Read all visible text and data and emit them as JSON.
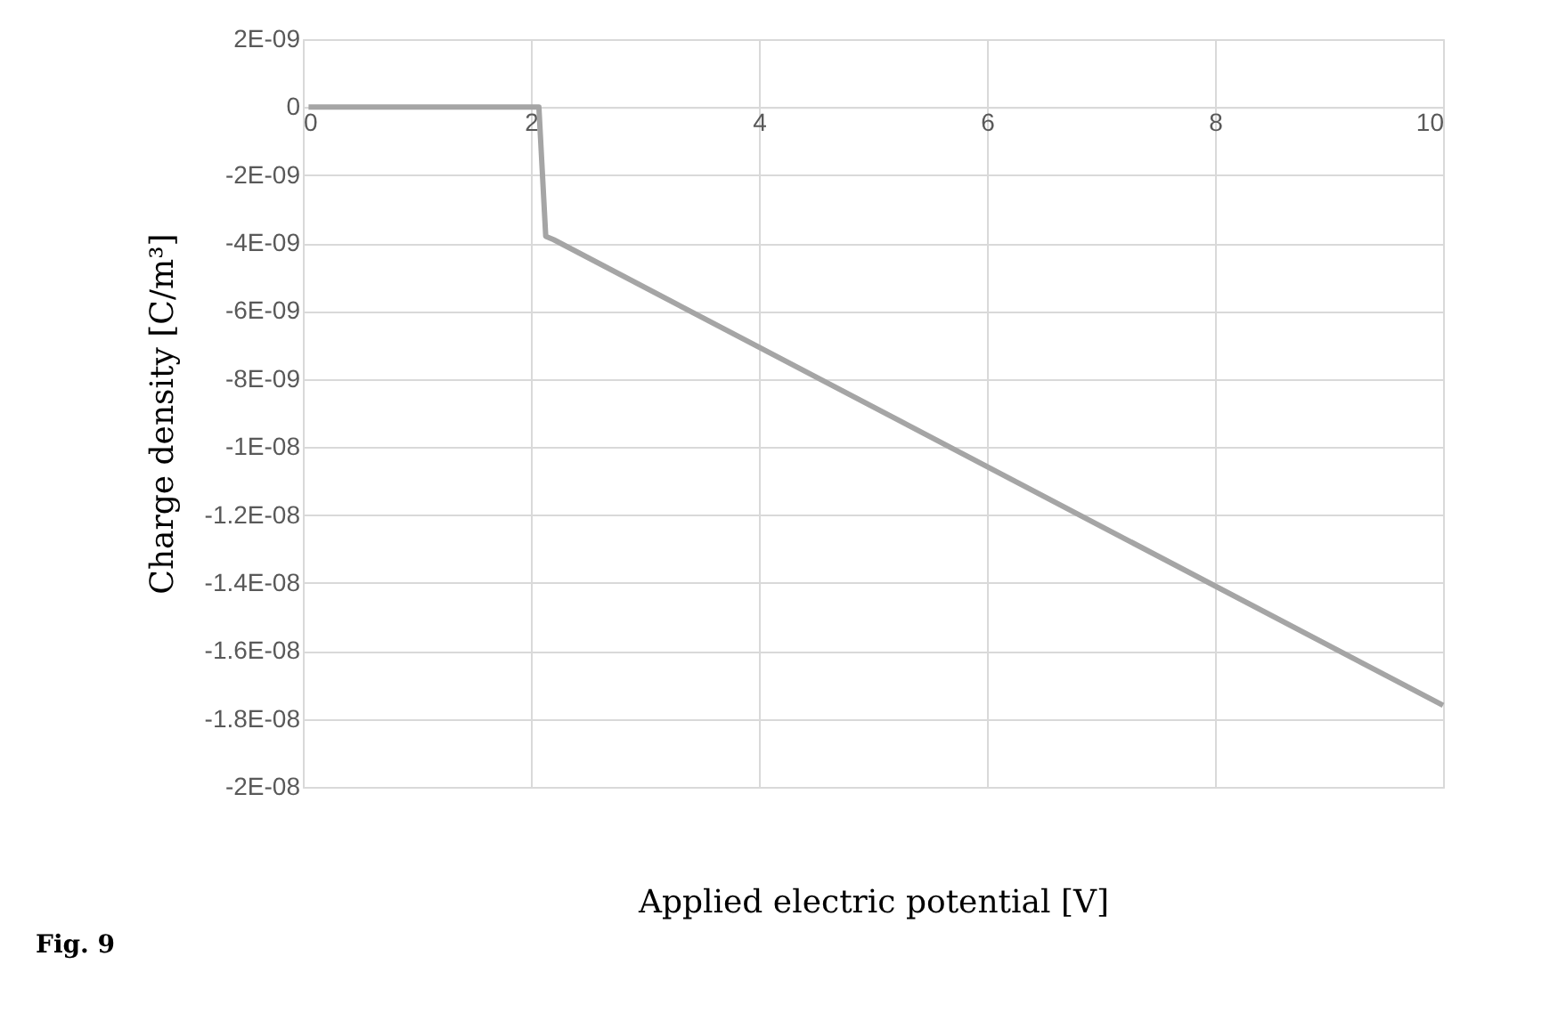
{
  "chart_data": {
    "type": "line",
    "xlabel": "Applied electric potential [V]",
    "ylabel": "Charge density   [C/m³]",
    "annotations": [
      "Fig. 9"
    ],
    "series": [
      {
        "color": "#a5a5a5",
        "x": [
          0.05,
          1.0,
          1.9,
          2.07,
          2.13,
          2.2,
          10
        ],
        "values": [
          0,
          0,
          0,
          0,
          -3.8e-09,
          -3.9e-09,
          -1.76e-08
        ]
      }
    ],
    "xlim": [
      0,
      10
    ],
    "xticks": [
      0,
      2,
      4,
      6,
      8,
      10
    ],
    "ylim": [
      -2e-08,
      2e-09
    ],
    "yticks": [
      {
        "value": 2e-09,
        "label": "2E-09"
      },
      {
        "value": 0,
        "label": "0"
      },
      {
        "value": -2e-09,
        "label": "-2E-09"
      },
      {
        "value": -4e-09,
        "label": "-4E-09"
      },
      {
        "value": -6e-09,
        "label": "-6E-09"
      },
      {
        "value": -8e-09,
        "label": "-8E-09"
      },
      {
        "value": -1e-08,
        "label": "-1E-08"
      },
      {
        "value": -1.2e-08,
        "label": "-1.2E-08"
      },
      {
        "value": -1.4e-08,
        "label": "-1.4E-08"
      },
      {
        "value": -1.6e-08,
        "label": "-1.6E-08"
      },
      {
        "value": -1.8e-08,
        "label": "-1.8E-08"
      },
      {
        "value": -2e-08,
        "label": "-2E-08"
      }
    ],
    "grid": true,
    "marker": "none",
    "line_style": "solid"
  }
}
